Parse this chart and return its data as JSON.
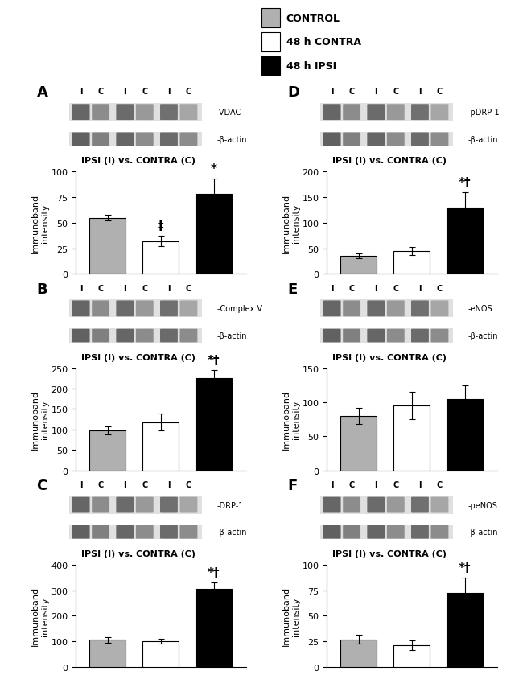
{
  "legend": {
    "labels": [
      "CONTROL",
      "48 h CONTRA",
      "48 h IPSI"
    ],
    "colors": [
      "#b0b0b0",
      "#ffffff",
      "#000000"
    ],
    "edge_colors": [
      "#000000",
      "#000000",
      "#000000"
    ]
  },
  "panels": [
    {
      "label": "A",
      "blot_label1": "-VDAC",
      "blot_label2": "-β-actin",
      "xlabel": "IPSI (I) vs. CONTRA (C)",
      "ylabel": "Immunoband\nintensity",
      "ylim": [
        0,
        100
      ],
      "yticks": [
        0,
        25,
        50,
        75,
        100
      ],
      "values": [
        55,
        32,
        78
      ],
      "errors": [
        3,
        5,
        15
      ],
      "sig_labels": [
        "",
        "‡",
        "*"
      ],
      "colors": [
        "#b0b0b0",
        "#ffffff",
        "#000000"
      ]
    },
    {
      "label": "B",
      "blot_label1": "-Complex V",
      "blot_label2": "-β-actin",
      "xlabel": "IPSI (I) vs. CONTRA (C)",
      "ylabel": "Immunoband\nintensity",
      "ylim": [
        0,
        250
      ],
      "yticks": [
        0,
        50,
        100,
        150,
        200,
        250
      ],
      "values": [
        98,
        118,
        225
      ],
      "errors": [
        10,
        20,
        20
      ],
      "sig_labels": [
        "",
        "",
        "*†"
      ],
      "colors": [
        "#b0b0b0",
        "#ffffff",
        "#000000"
      ]
    },
    {
      "label": "C",
      "blot_label1": "-DRP-1",
      "blot_label2": "-β-actin",
      "xlabel": "IPSI (I) vs. CONTRA (C)",
      "ylabel": "Immunoband\nintensity",
      "ylim": [
        0,
        400
      ],
      "yticks": [
        0,
        100,
        200,
        300,
        400
      ],
      "values": [
        105,
        100,
        305
      ],
      "errors": [
        10,
        10,
        25
      ],
      "sig_labels": [
        "",
        "",
        "*†"
      ],
      "colors": [
        "#b0b0b0",
        "#ffffff",
        "#000000"
      ]
    },
    {
      "label": "D",
      "blot_label1": "-pDRP-1",
      "blot_label2": "-β-actin",
      "xlabel": "IPSI (I) vs. CONTRA (C)",
      "ylabel": "Immunoband\nintensity",
      "ylim": [
        0,
        200
      ],
      "yticks": [
        0,
        50,
        100,
        150,
        200
      ],
      "values": [
        35,
        45,
        130
      ],
      "errors": [
        5,
        8,
        30
      ],
      "sig_labels": [
        "",
        "",
        "*†"
      ],
      "colors": [
        "#b0b0b0",
        "#ffffff",
        "#000000"
      ]
    },
    {
      "label": "E",
      "blot_label1": "-eNOS",
      "blot_label2": "-β-actin",
      "xlabel": "IPSI (I) vs. CONTRA (C)",
      "ylabel": "Immunoband\nintensity",
      "ylim": [
        0,
        150
      ],
      "yticks": [
        0,
        50,
        100,
        150
      ],
      "values": [
        80,
        95,
        105
      ],
      "errors": [
        12,
        20,
        20
      ],
      "sig_labels": [
        "",
        "",
        ""
      ],
      "colors": [
        "#b0b0b0",
        "#ffffff",
        "#000000"
      ]
    },
    {
      "label": "F",
      "blot_label1": "-peNOS",
      "blot_label2": "-β-actin",
      "xlabel": "IPSI (I) vs. CONTRA (C)",
      "ylabel": "Immunoband\nintensity",
      "ylim": [
        0,
        100
      ],
      "yticks": [
        0,
        25,
        50,
        75,
        100
      ],
      "values": [
        27,
        21,
        72
      ],
      "errors": [
        4,
        5,
        15
      ],
      "sig_labels": [
        "",
        "",
        "*†"
      ],
      "colors": [
        "#b0b0b0",
        "#ffffff",
        "#000000"
      ]
    }
  ],
  "fontsize_label": 8,
  "fontsize_tick": 8,
  "fontsize_legend": 9,
  "fontsize_panel": 13,
  "fontsize_blot_label": 7,
  "fontsize_ic": 7,
  "fontsize_ipsi": 8,
  "fontsize_sig": 11
}
